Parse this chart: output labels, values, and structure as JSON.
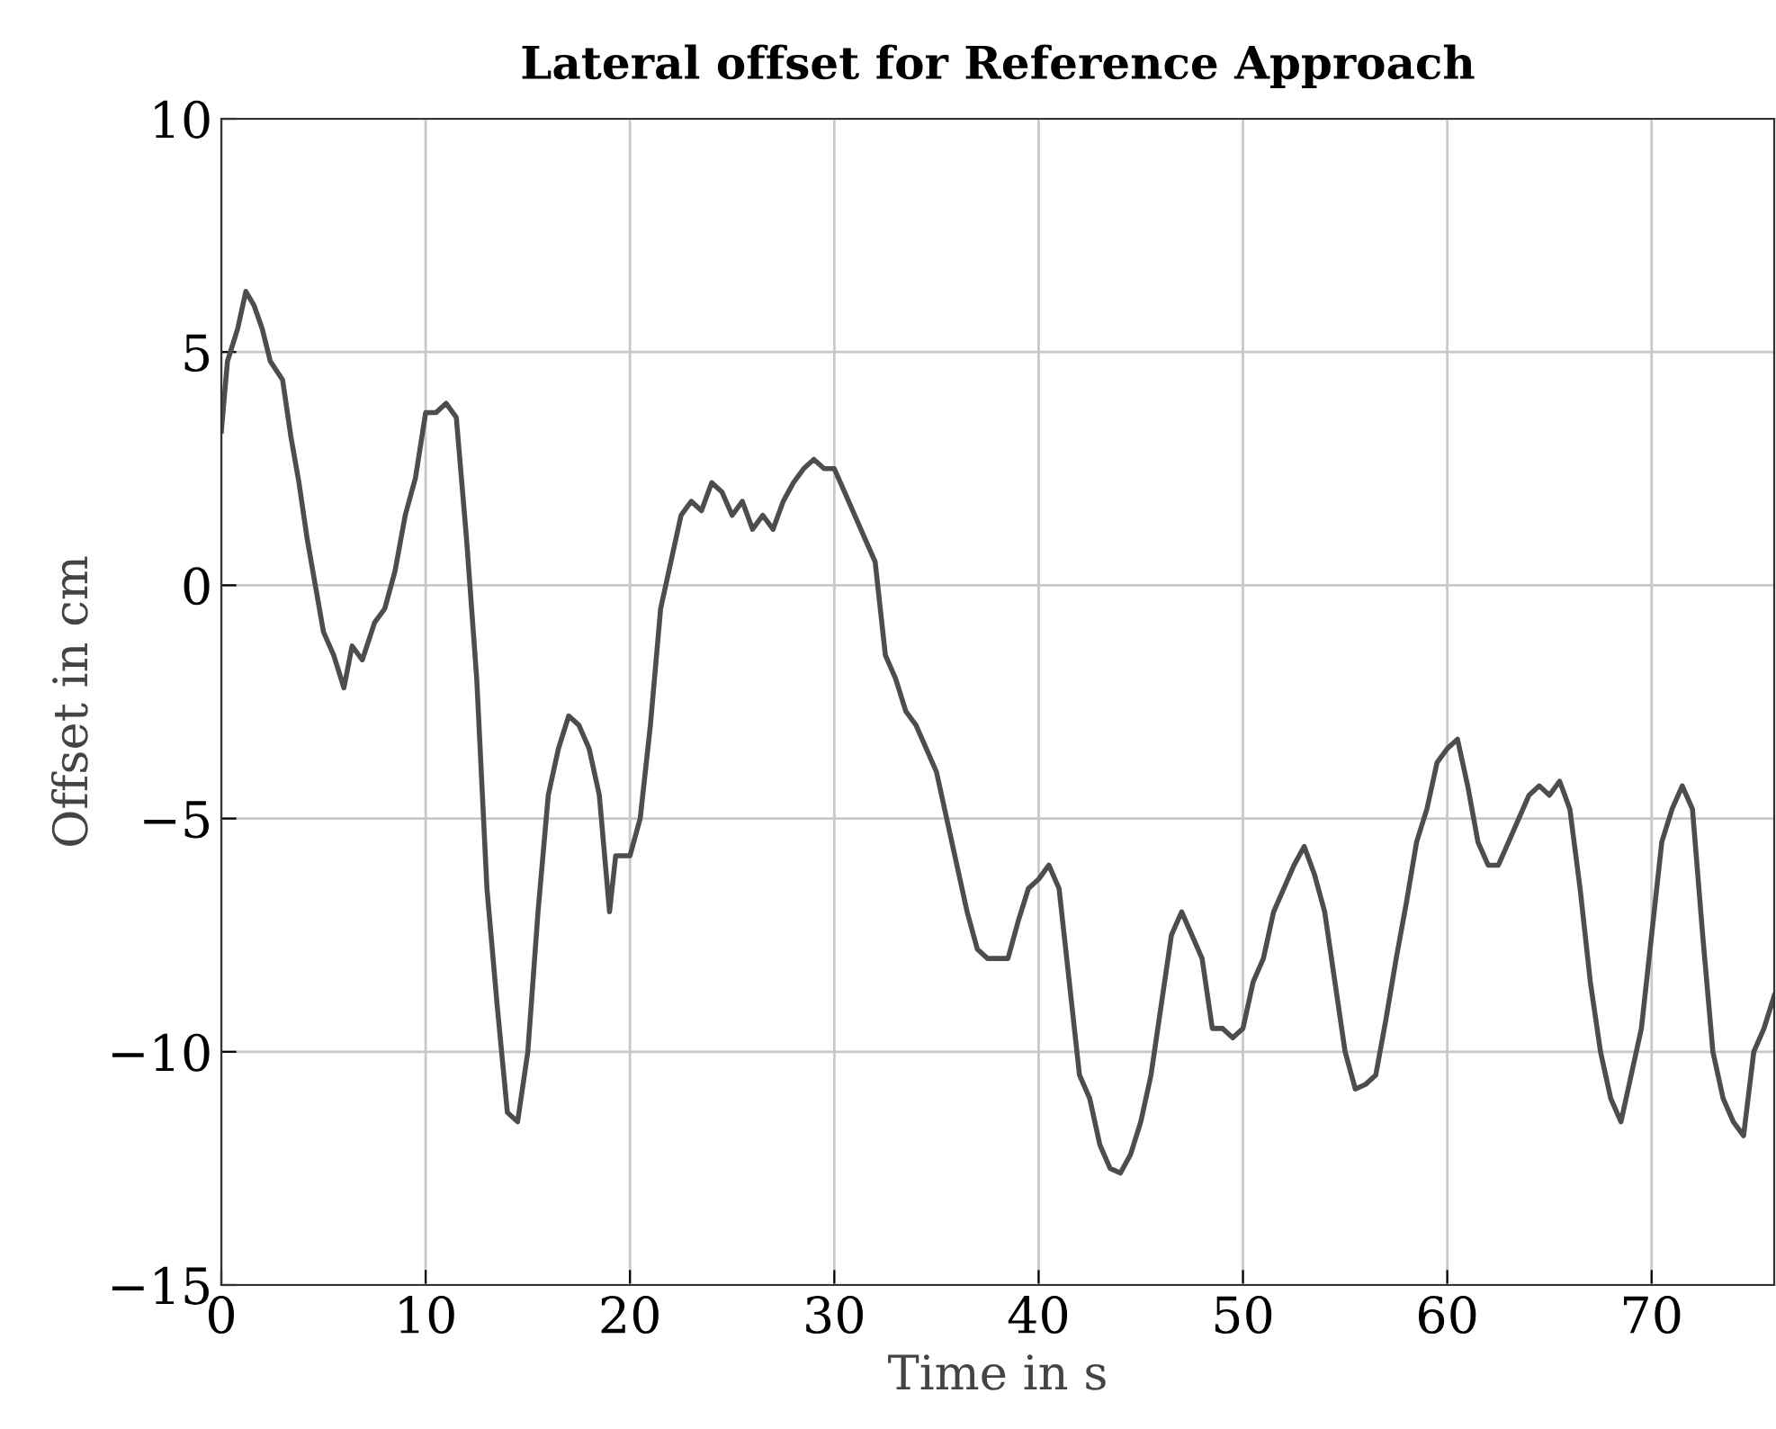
{
  "chart_data": {
    "type": "line",
    "title": "Lateral offset for Reference Approach",
    "xlabel": "Time in s",
    "ylabel": "Offset in cm",
    "x": [
      0,
      0.3,
      0.8,
      1.2,
      1.6,
      2.0,
      2.4,
      3.0,
      3.4,
      3.8,
      4.2,
      4.6,
      5.0,
      5.5,
      6.0,
      6.4,
      6.9,
      7.5,
      8.0,
      8.5,
      9.0,
      9.5,
      10.0,
      10.5,
      11.0,
      11.5,
      12.0,
      12.5,
      13.0,
      13.5,
      14.0,
      14.5,
      15.0,
      15.5,
      16.0,
      16.5,
      17.0,
      17.5,
      18.0,
      18.5,
      19.0,
      19.3,
      20.0,
      20.5,
      21.0,
      21.5,
      22.0,
      22.5,
      23.0,
      23.5,
      24.0,
      24.5,
      25.0,
      25.5,
      26.0,
      26.5,
      27.0,
      27.5,
      28.0,
      28.5,
      29.0,
      29.5,
      30.0,
      30.5,
      31.0,
      31.5,
      32.0,
      32.5,
      33.0,
      33.5,
      34.0,
      34.5,
      35.0,
      35.5,
      36.0,
      36.5,
      37.0,
      37.5,
      38.0,
      38.5,
      39.0,
      39.5,
      40.0,
      40.5,
      41.0,
      41.5,
      42.0,
      42.5,
      43.0,
      43.5,
      44.0,
      44.5,
      45.0,
      45.5,
      46.0,
      46.5,
      47.0,
      47.5,
      48.0,
      48.5,
      49.0,
      49.5,
      50.0,
      50.5,
      51.0,
      51.5,
      52.0,
      52.5,
      53.0,
      53.5,
      54.0,
      54.5,
      55.0,
      55.5,
      56.0,
      56.5,
      57.0,
      57.5,
      58.0,
      58.5,
      59.0,
      59.5,
      60.0,
      60.5,
      61.0,
      61.5,
      62.0,
      62.5,
      63.0,
      63.5,
      64.0,
      64.5,
      65.0,
      65.5,
      66.0,
      66.5,
      67.0,
      67.5,
      68.0,
      68.5,
      69.0,
      69.5,
      70.0,
      70.5,
      71.0,
      71.5,
      72.0,
      72.5,
      73.0,
      73.5,
      74.0,
      74.5,
      75.0,
      75.5,
      76.0
    ],
    "series": [
      {
        "color": "#4d4d4d",
        "values": [
          3.3,
          4.8,
          5.5,
          6.3,
          6.0,
          5.5,
          4.8,
          4.4,
          3.2,
          2.2,
          1.0,
          0.0,
          -1.0,
          -1.5,
          -2.2,
          -1.3,
          -1.6,
          -0.8,
          -0.5,
          0.3,
          1.5,
          2.3,
          3.7,
          3.7,
          3.9,
          3.6,
          1.0,
          -2.0,
          -6.5,
          -9.0,
          -11.3,
          -11.5,
          -10.0,
          -7.0,
          -4.5,
          -3.5,
          -2.8,
          -3.0,
          -3.5,
          -4.5,
          -7.0,
          -5.8,
          -5.8,
          -5.0,
          -3.0,
          -0.5,
          0.5,
          1.5,
          1.8,
          1.6,
          2.2,
          2.0,
          1.5,
          1.8,
          1.2,
          1.5,
          1.2,
          1.8,
          2.2,
          2.5,
          2.7,
          2.5,
          2.5,
          2.0,
          1.5,
          1.0,
          0.5,
          -1.5,
          -2.0,
          -2.7,
          -3.0,
          -3.5,
          -4.0,
          -5.0,
          -6.0,
          -7.0,
          -7.8,
          -8.0,
          -8.0,
          -8.0,
          -7.2,
          -6.5,
          -6.3,
          -6.0,
          -6.5,
          -8.5,
          -10.5,
          -11.0,
          -12.0,
          -12.5,
          -12.6,
          -12.2,
          -11.5,
          -10.5,
          -9.0,
          -7.5,
          -7.0,
          -7.5,
          -8.0,
          -9.5,
          -9.5,
          -9.7,
          -9.5,
          -8.5,
          -8.0,
          -7.0,
          -6.5,
          -6.0,
          -5.6,
          -6.2,
          -7.0,
          -8.5,
          -10.0,
          -10.8,
          -10.7,
          -10.5,
          -9.3,
          -8.0,
          -6.8,
          -5.5,
          -4.8,
          -3.8,
          -3.5,
          -3.3,
          -4.3,
          -5.5,
          -6.0,
          -6.0,
          -5.5,
          -5.0,
          -4.5,
          -4.3,
          -4.5,
          -4.2,
          -4.8,
          -6.5,
          -8.5,
          -10.0,
          -11.0,
          -11.5,
          -10.5,
          -9.5,
          -7.5,
          -5.5,
          -4.8,
          -4.3,
          -4.8,
          -7.5,
          -10.0,
          -11.0,
          -11.5,
          -11.8,
          -10.0,
          -9.5,
          -8.8
        ]
      }
    ],
    "xlim": [
      0,
      76
    ],
    "ylim": [
      -15,
      10
    ],
    "xticks": [
      0,
      10,
      20,
      30,
      40,
      50,
      60,
      70
    ],
    "yticks": [
      -15,
      -10,
      -5,
      0,
      5,
      10
    ],
    "grid": true,
    "line_style": "solid",
    "marker": "none"
  }
}
